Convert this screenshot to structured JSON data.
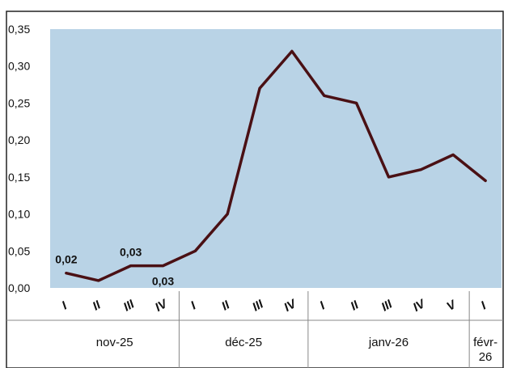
{
  "chart_data": {
    "type": "line",
    "title": "",
    "xlabel": "",
    "ylabel": "",
    "ylim": [
      0,
      0.35
    ],
    "y_ticks": [
      "0,00",
      "0,05",
      "0,10",
      "0,15",
      "0,20",
      "0,25",
      "0,30",
      "0,35"
    ],
    "categories": [
      "I",
      "II",
      "III",
      "IV",
      "I",
      "II",
      "III",
      "IV",
      "I",
      "II",
      "III",
      "IV",
      "V",
      "I"
    ],
    "groups": [
      {
        "label": "nov-25",
        "start": 0,
        "end": 3
      },
      {
        "label": "déc-25",
        "start": 4,
        "end": 7
      },
      {
        "label": "janv-26",
        "start": 8,
        "end": 12
      },
      {
        "label": "févr-\n26",
        "start": 13,
        "end": 13
      }
    ],
    "series": [
      {
        "values": [
          0.02,
          0.01,
          0.03,
          0.03,
          0.05,
          0.1,
          0.27,
          0.32,
          0.26,
          0.25,
          0.15,
          0.16,
          0.18,
          0.145
        ],
        "color": "#4a1014"
      }
    ],
    "data_labels": [
      {
        "index": 0,
        "text": "0,02"
      },
      {
        "index": 2,
        "text": "0,03"
      },
      {
        "index": 3,
        "text": "0,03"
      }
    ],
    "grid": false,
    "plot_background": "#b9d3e6",
    "legend": "none"
  }
}
